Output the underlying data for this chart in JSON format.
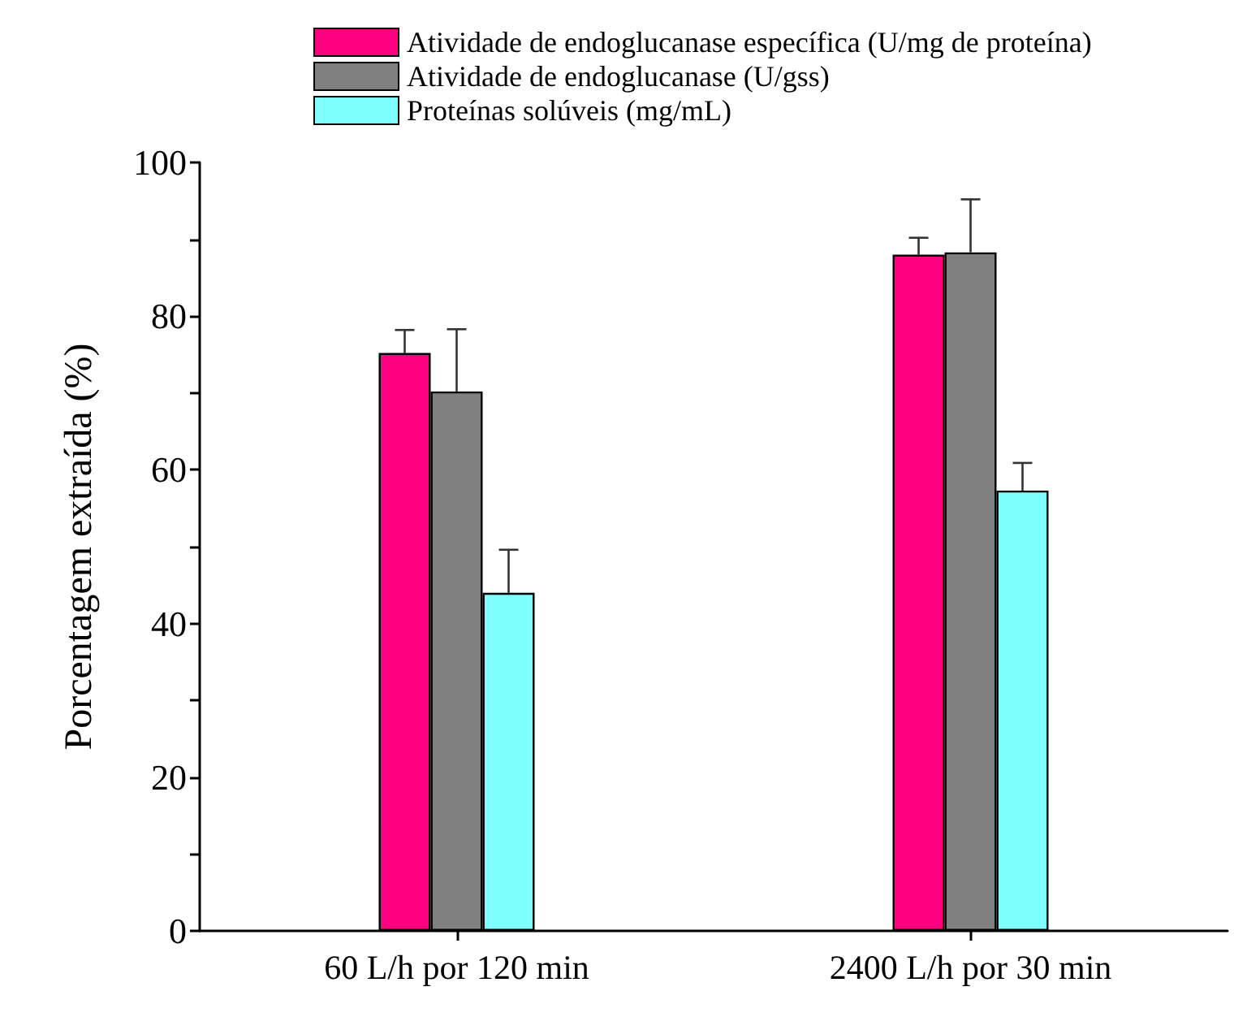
{
  "chart_data": {
    "type": "bar",
    "ylabel": "Porcentagem extraída (%)",
    "categories": [
      "60 L/h por 120 min",
      "2400 L/h por 30 min"
    ],
    "series": [
      {
        "name": "Atividade de endoglucanase específica (U/mg de proteína)",
        "color": "#ff0080",
        "values": [
          75.2,
          88.0
        ],
        "errors": [
          [
            75.2,
            78.2
          ],
          [
            88.0,
            90.2
          ]
        ]
      },
      {
        "name": "Atividade de endoglucanase (U/gss)",
        "color": "#808080",
        "values": [
          70.2,
          88.3
        ],
        "errors": [
          [
            70.2,
            78.3
          ],
          [
            88.3,
            95.2
          ]
        ]
      },
      {
        "name": "Proteínas solúveis (mg/mL)",
        "color": "#80ffff",
        "values": [
          44.0,
          57.3
        ],
        "errors": [
          [
            44.0,
            49.6
          ],
          [
            57.3,
            60.9
          ]
        ]
      }
    ],
    "ylim": [
      0,
      100
    ],
    "yticks": [
      0,
      {
        "value": 10,
        "label": null
      },
      20,
      {
        "value": 30,
        "label": null
      },
      40,
      {
        "value": 50,
        "label": null
      },
      60,
      {
        "value": 70,
        "label": null
      },
      80,
      {
        "value": 90,
        "label": null
      },
      100
    ],
    "legend": "top",
    "grid": false
  }
}
